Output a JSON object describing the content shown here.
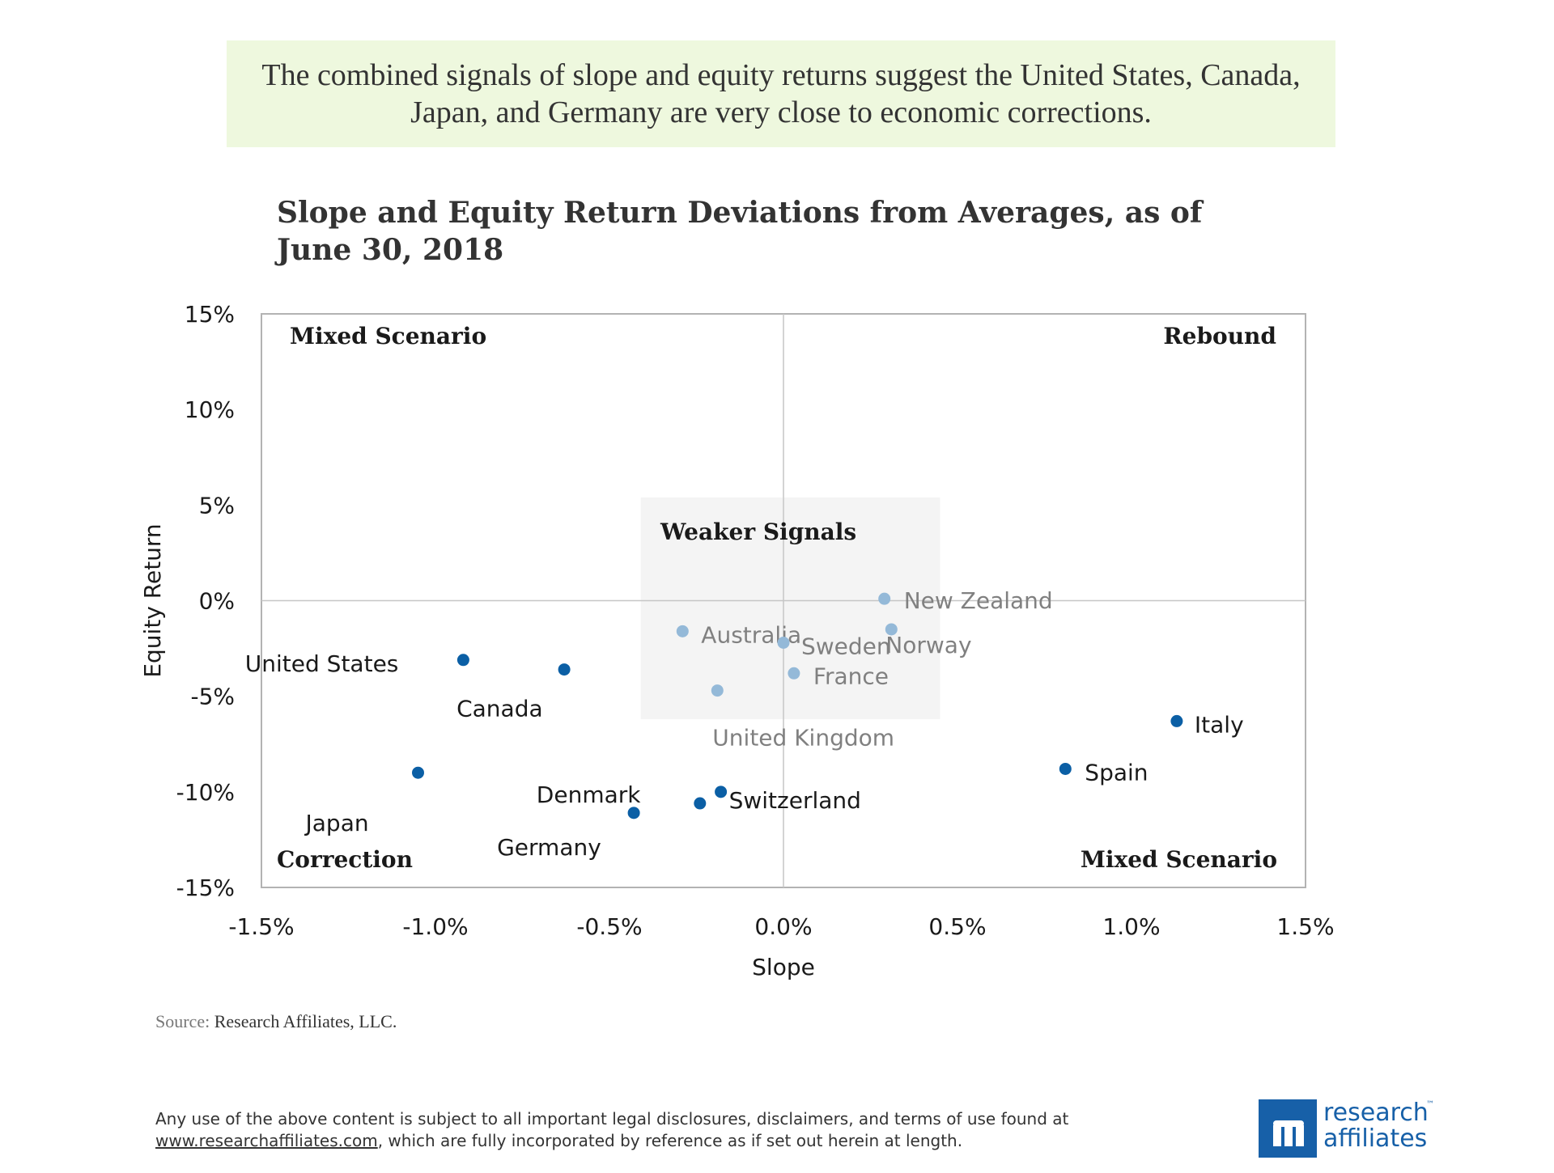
{
  "banner": {
    "text": "The combined signals of slope and equity returns suggest the United States, Canada, Japan, and Germany are very close to economic corrections."
  },
  "chart_data": {
    "type": "scatter",
    "title": "Slope and Equity Return Deviations from Averages, as of June 30, 2018",
    "xlabel": "Slope",
    "ylabel": "Equity Return",
    "xlim": [
      -1.5,
      1.5
    ],
    "ylim": [
      -15,
      15
    ],
    "x_ticks": [
      "-1.5%",
      "-1.0%",
      "-0.5%",
      "0.0%",
      "0.5%",
      "1.0%",
      "1.5%"
    ],
    "y_ticks": [
      "15%",
      "10%",
      "5%",
      "0%",
      "-5%",
      "-10%",
      "-15%"
    ],
    "quadrant_labels": {
      "top_left": "Mixed Scenario",
      "top_right": "Rebound",
      "bottom_left": "Correction",
      "bottom_right": "Mixed Scenario"
    },
    "weak_region": {
      "label": "Weaker Signals",
      "x": [
        -0.41,
        0.45
      ],
      "y": [
        -6.2,
        5.4
      ]
    },
    "colors": {
      "strong": "#0b5fa5",
      "weak": "#94b9d8",
      "weak_label": "#808080",
      "strong_label": "#1a1a1a"
    },
    "points": [
      {
        "name": "United States",
        "x": -0.92,
        "y": -3.1,
        "weak": false
      },
      {
        "name": "Canada",
        "x": -0.63,
        "y": -3.6,
        "weak": false
      },
      {
        "name": "Japan",
        "x": -1.05,
        "y": -9.0,
        "weak": false
      },
      {
        "name": "Germany",
        "x": -0.43,
        "y": -11.1,
        "weak": false
      },
      {
        "name": "Denmark",
        "x": -0.24,
        "y": -10.6,
        "weak": false
      },
      {
        "name": "Switzerland",
        "x": -0.18,
        "y": -10.0,
        "weak": false
      },
      {
        "name": "Spain",
        "x": 0.81,
        "y": -8.8,
        "weak": false
      },
      {
        "name": "Italy",
        "x": 1.13,
        "y": -6.3,
        "weak": false
      },
      {
        "name": "Australia",
        "x": -0.29,
        "y": -1.6,
        "weak": true
      },
      {
        "name": "Sweden",
        "x": 0.0,
        "y": -2.2,
        "weak": true
      },
      {
        "name": "France",
        "x": 0.03,
        "y": -3.8,
        "weak": true
      },
      {
        "name": "United Kingdom",
        "x": -0.19,
        "y": -4.7,
        "weak": true
      },
      {
        "name": "New Zealand",
        "x": 0.29,
        "y": 0.1,
        "weak": true
      },
      {
        "name": "Norway",
        "x": 0.31,
        "y": -1.5,
        "weak": true
      }
    ]
  },
  "source": {
    "label": "Source:",
    "text": "Research Affiliates, LLC."
  },
  "disclaimer": {
    "line1": "Any use of the above content is subject to all important legal disclosures, disclaimers, and terms of use found at",
    "link": "www.researchaffiliates.com",
    "line2": ", which are fully incorporated by reference as if set out herein at length."
  },
  "logo": {
    "word1": "research",
    "tm": "™",
    "word2": "affiliates"
  }
}
